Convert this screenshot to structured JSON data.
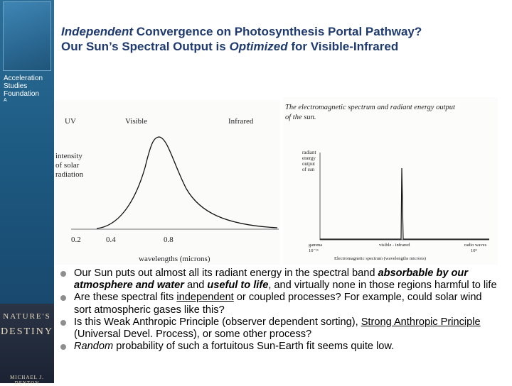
{
  "title": {
    "line1_em": "Independent",
    "line1_rest": " Convergence on Photosynthesis Portal Pathway?",
    "line2_a": "Our Sun’s Spectral Output is ",
    "line2_em": "Optimized",
    "line2_b": " for Visible-Infrared"
  },
  "sidebar": {
    "org_lines": [
      "Acceleration",
      "Studies",
      "Foundation"
    ],
    "small": "A",
    "book": {
      "title_a": "NATURE'S",
      "title_b": "DESTINY",
      "author": "MICHAEL J. DENTON"
    }
  },
  "figure_left": {
    "labels": {
      "uv": "UV",
      "visible": "Visible",
      "infrared": "Infrared",
      "y_label": [
        "intensity",
        "of solar",
        "radiation"
      ],
      "x_label": "wavelengths (microns)"
    },
    "x_ticks": [
      "0.2",
      "0.4",
      "0.8"
    ]
  },
  "figure_right": {
    "caption": [
      "The electromagnetic spectrum and radiant energy output",
      "of the sun."
    ],
    "y_label": [
      "radiant",
      "energy",
      "output",
      "of sun"
    ],
    "x_ticks": [
      "gamma",
      "visible - infrared",
      "radio waves"
    ],
    "x_ticks_sub": [
      "10⁻¹⁶",
      "10⁹"
    ],
    "x_label": "Electromagnetic spectrum (wavelengths microns)"
  },
  "bullets": {
    "b1_a": "Our Sun puts out almost all its radiant energy in the spectral band ",
    "b1_bi1": "absorbable by our atmosphere and water",
    "b1_b": " and ",
    "b1_bi2": "useful to life",
    "b1_c": ", and virtually none in those regions harmful to life",
    "b2_a": "Are these spectral fits ",
    "b2_u": "independent",
    "b2_b": " or coupled processes? For example, could solar wind sort atmospheric gases like this?",
    "b3_a": "Is this Weak Anthropic Principle (observer dependent sorting), ",
    "b3_u": "Strong Anthropic Principle",
    "b3_b": " (Universal Devel. Process), or some other process?",
    "b4_i": "Random",
    "b4_b": " probability of such a fortuitous Sun-Earth fit seems quite low."
  }
}
